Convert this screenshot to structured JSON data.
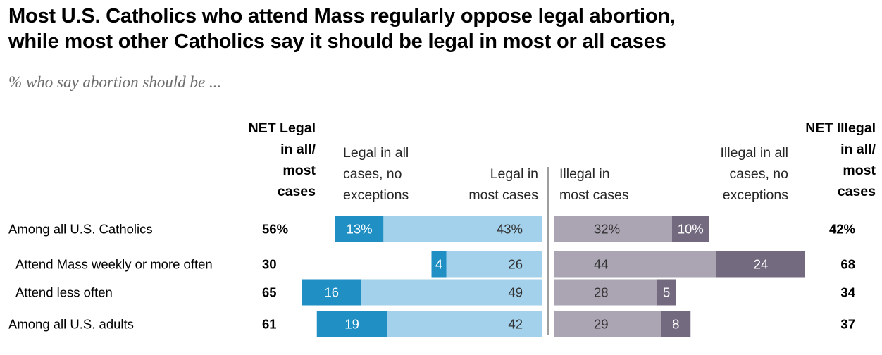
{
  "title_line1": "Most U.S. Catholics who attend Mass regularly oppose legal abortion,",
  "title_line2": "while most other Catholics say it should be legal in most or all cases",
  "subtitle": "% who say abortion should be ...",
  "colors": {
    "legal_all": "#1f8fc4",
    "legal_most": "#a3d0ea",
    "illegal_most": "#aaa4b3",
    "illegal_all": "#736a80",
    "divider": "#7f7f7f",
    "header": "#262626"
  },
  "chart_data": {
    "type": "bar",
    "orientation": "horizontal",
    "stacked": "diverging",
    "headers": {
      "net_legal": [
        "NET Legal",
        "in all/",
        "most",
        "cases"
      ],
      "legal_all": [
        "Legal in all",
        "cases, no",
        "exceptions"
      ],
      "legal_most": [
        "Legal in",
        "most cases"
      ],
      "illegal_most": [
        "Illegal in",
        "most cases"
      ],
      "illegal_all": [
        "Illegal in all",
        "cases, no",
        "exceptions"
      ],
      "net_illegal": [
        "NET Illegal",
        "in all/",
        "most",
        "cases"
      ]
    },
    "categories": [
      "Among all U.S. Catholics",
      "Attend Mass weekly or more often",
      "Attend less often",
      "Among all U.S. adults"
    ],
    "category_indent": [
      false,
      true,
      true,
      false
    ],
    "series": [
      {
        "name": "Legal in all cases, no exceptions",
        "values": [
          13,
          4,
          16,
          19
        ],
        "labels": [
          "13%",
          "4",
          "16",
          "19"
        ]
      },
      {
        "name": "Legal in most cases",
        "values": [
          43,
          26,
          49,
          42
        ],
        "labels": [
          "43%",
          "26",
          "49",
          "42"
        ]
      },
      {
        "name": "Illegal in most cases",
        "values": [
          32,
          44,
          28,
          29
        ],
        "labels": [
          "32%",
          "44",
          "28",
          "29"
        ]
      },
      {
        "name": "Illegal in all cases, no exceptions",
        "values": [
          10,
          24,
          5,
          8
        ],
        "labels": [
          "10%",
          "24",
          "5",
          "8"
        ]
      }
    ],
    "net_legal": [
      "56%",
      "30",
      "65",
      "61"
    ],
    "net_illegal": [
      "42%",
      "68",
      "34",
      "37"
    ],
    "grid": false,
    "legend": "column headers"
  }
}
